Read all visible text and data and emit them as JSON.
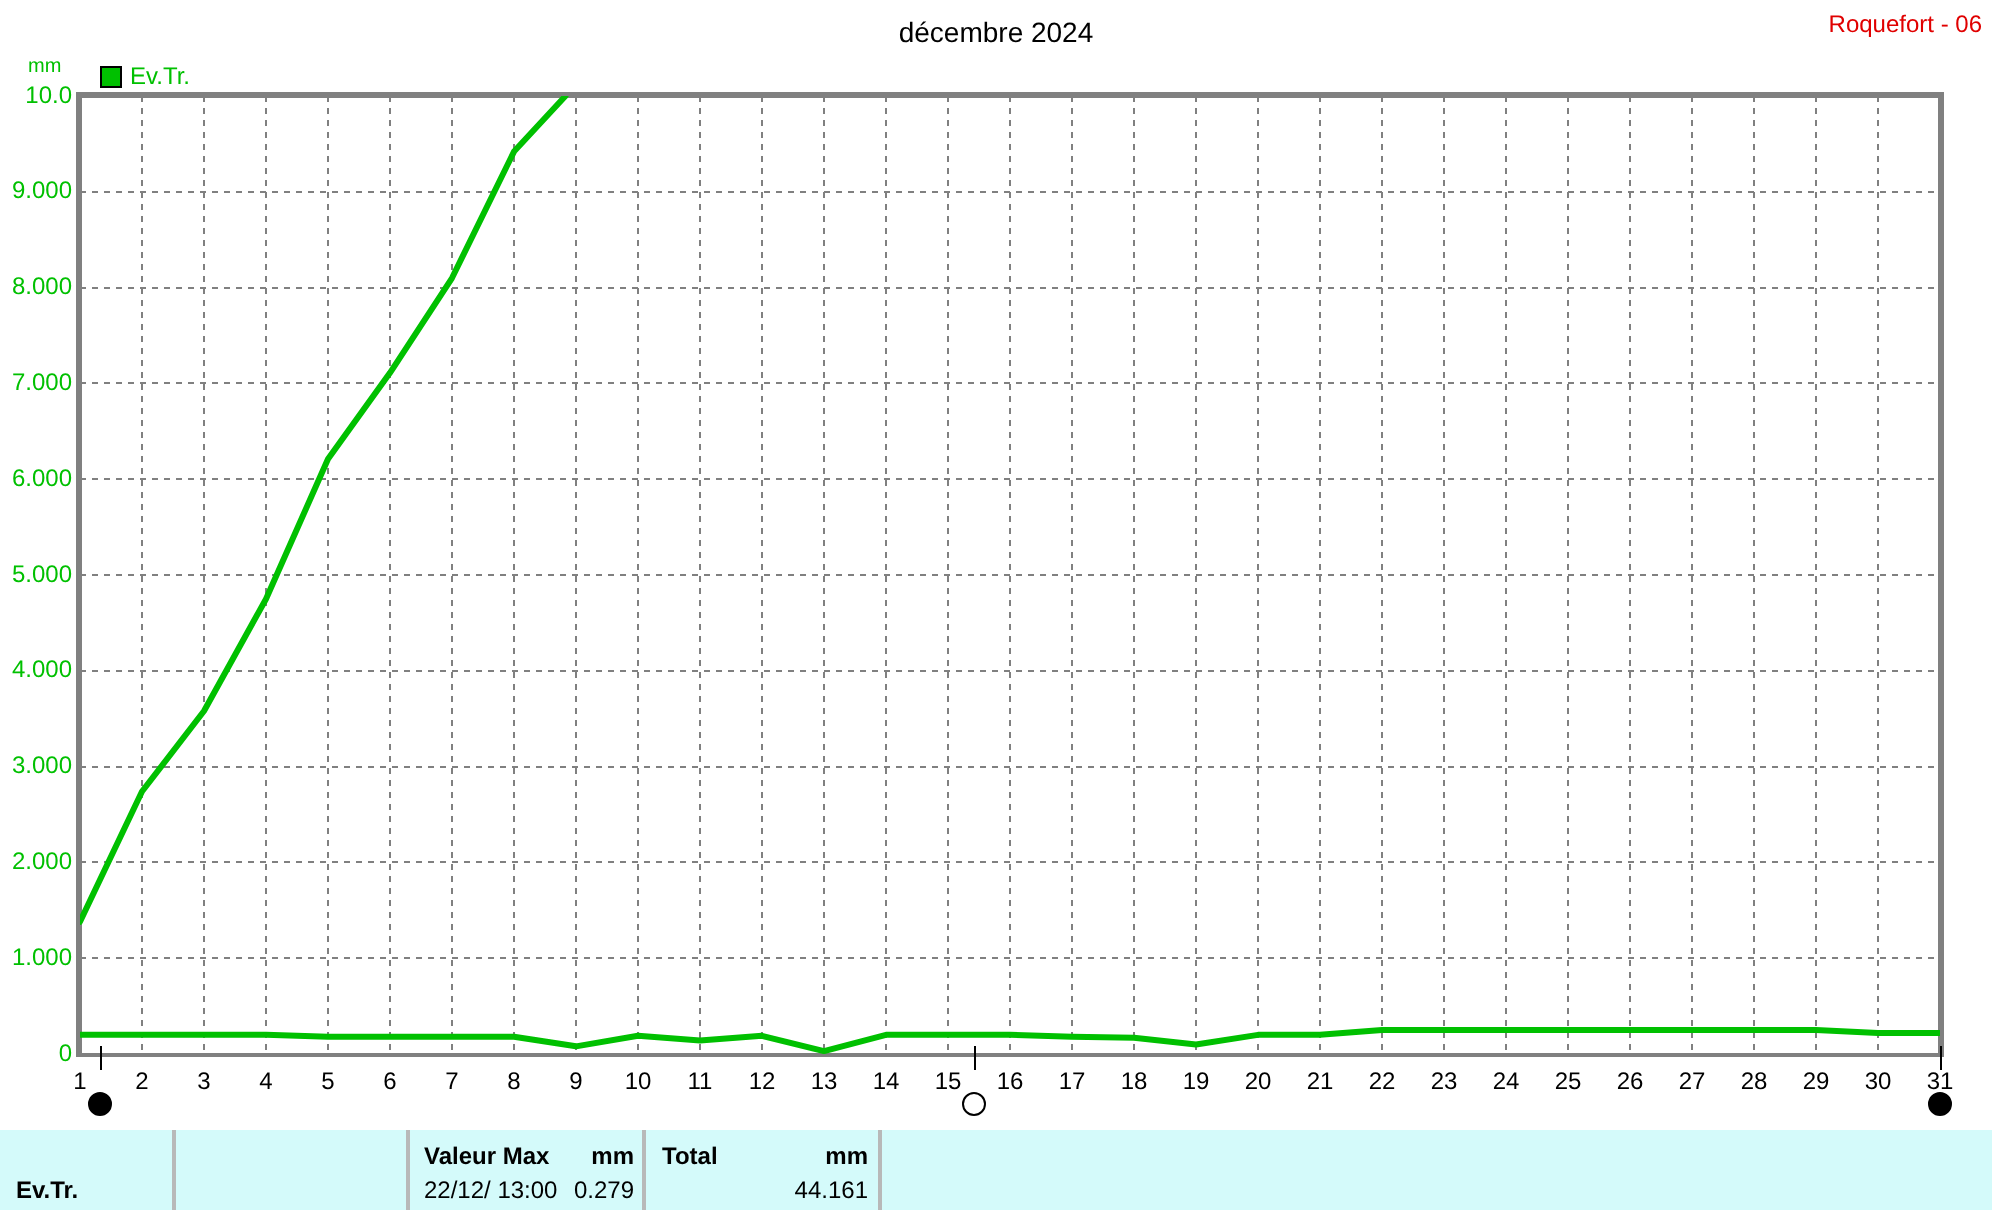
{
  "chart_data": {
    "type": "line",
    "title": "décembre 2024",
    "subtitle": "Roquefort - 06",
    "ylabel": "mm",
    "x": [
      1,
      2,
      3,
      4,
      5,
      6,
      7,
      8,
      9,
      10,
      11,
      12,
      13,
      14,
      15,
      16,
      17,
      18,
      19,
      20,
      21,
      22,
      23,
      24,
      25,
      26,
      27,
      28,
      29,
      30,
      31
    ],
    "series": [
      {
        "name": "Ev.Tr.",
        "color": "#00c000",
        "values": [
          0.2,
          0.2,
          0.2,
          0.2,
          0.18,
          0.18,
          0.18,
          0.18,
          0.08,
          0.19,
          0.14,
          0.19,
          0.03,
          0.2,
          0.2,
          0.2,
          0.18,
          0.17,
          0.1,
          0.2,
          0.2,
          0.25,
          0.25,
          0.25,
          0.25,
          0.25,
          0.25,
          0.25,
          0.25,
          0.22,
          0.22
        ]
      },
      {
        "color": "#00c000",
        "x": [
          1,
          2,
          3,
          4,
          5,
          6,
          7,
          8,
          8.83
        ],
        "values": [
          1.38,
          2.74,
          3.58,
          4.75,
          6.21,
          7.11,
          8.1,
          9.42,
          10
        ]
      }
    ],
    "xlim": [
      1,
      31
    ],
    "xticks": [
      1,
      2,
      3,
      4,
      5,
      6,
      7,
      8,
      9,
      10,
      11,
      12,
      13,
      14,
      15,
      16,
      17,
      18,
      19,
      20,
      21,
      22,
      23,
      24,
      25,
      26,
      27,
      28,
      29,
      30,
      31
    ],
    "ylim": [
      0,
      10
    ],
    "yticks": [
      0,
      {
        "value": 1,
        "label": "1.000"
      },
      {
        "value": 2,
        "label": "2.000"
      },
      {
        "value": 3,
        "label": "3.000"
      },
      {
        "value": 4,
        "label": "4.000"
      },
      {
        "value": 5,
        "label": "5.000"
      },
      {
        "value": 6,
        "label": "6.000"
      },
      {
        "value": 7,
        "label": "7.000"
      },
      {
        "value": 8,
        "label": "8.000"
      },
      {
        "value": 9,
        "label": "9.000"
      },
      {
        "value": 10,
        "label": "10.0"
      }
    ],
    "grid": true,
    "legend": "top left",
    "marker": "none",
    "annotations": [
      "Ev.Tr.",
      "Valeur Max",
      "mm",
      "22/12/ 13:00",
      "0.279",
      "Total",
      "mm",
      "44.161"
    ]
  }
}
